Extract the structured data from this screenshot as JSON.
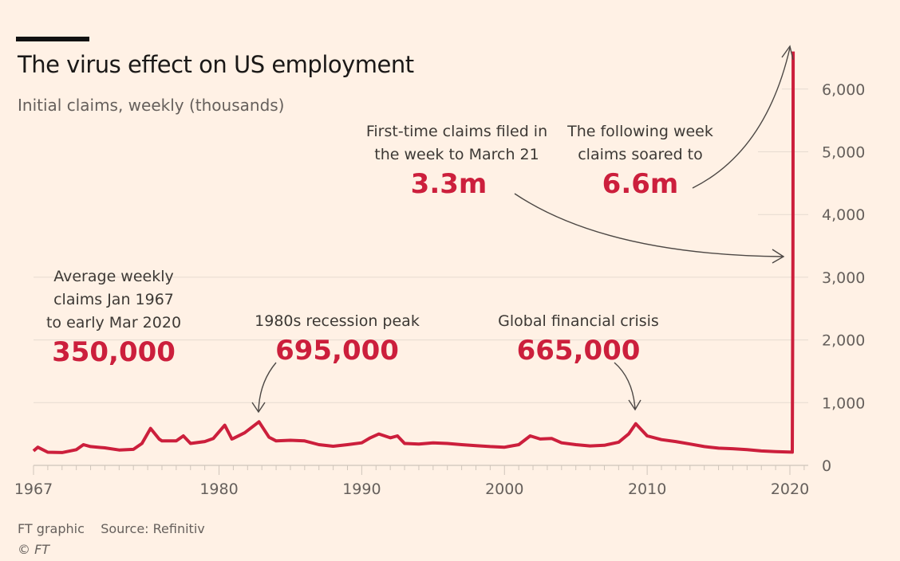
{
  "chart_data": {
    "type": "line",
    "title": "The virus effect on US employment",
    "subtitle": "Initial claims, weekly (thousands)",
    "xlabel": "",
    "ylabel": "",
    "xlim": [
      1967,
      2021
    ],
    "ylim": [
      0,
      6600
    ],
    "y_axis_position": "right",
    "grid": true,
    "x_ticks": [
      "1967",
      "1980",
      "1990",
      "2000",
      "2010",
      "2020"
    ],
    "y_ticks": [
      "0",
      "1,000",
      "2,000",
      "3,000",
      "4,000",
      "5,000",
      "6,000"
    ],
    "line_color": "#cc1f3c",
    "series": [
      {
        "x": [
          1967,
          1967.3,
          1968,
          1969,
          1970,
          1970.5,
          1971,
          1972,
          1973,
          1974,
          1974.6,
          1975.2,
          1975.8,
          1976,
          1977,
          1977.5,
          1978,
          1979,
          1979.6,
          1980.4,
          1980.9,
          1981,
          1981.8,
          1982.8,
          1983.5,
          1984,
          1985,
          1986,
          1987,
          1988,
          1989,
          1990,
          1990.6,
          1991.2,
          1992,
          1992.5,
          1993,
          1994,
          1995,
          1996,
          1997,
          1998,
          1999,
          2000,
          2001,
          2001.8,
          2002.5,
          2003.3,
          2004,
          2005,
          2006,
          2007,
          2008,
          2008.7,
          2009.2,
          2010,
          2011,
          2012,
          2013,
          2014,
          2015,
          2016,
          2017,
          2018,
          2019,
          2020.17,
          2020.21,
          2020.23
        ],
        "y": [
          230,
          290,
          210,
          205,
          250,
          330,
          300,
          280,
          245,
          255,
          350,
          590,
          420,
          390,
          390,
          470,
          350,
          380,
          430,
          640,
          420,
          430,
          520,
          695,
          450,
          390,
          400,
          390,
          330,
          305,
          330,
          360,
          440,
          500,
          440,
          470,
          350,
          340,
          360,
          350,
          330,
          315,
          300,
          290,
          330,
          470,
          420,
          430,
          360,
          330,
          310,
          320,
          370,
          500,
          665,
          470,
          410,
          380,
          340,
          300,
          275,
          265,
          250,
          230,
          220,
          211,
          3300,
          6600
        ]
      }
    ],
    "annotations": [
      {
        "lines": [
          "Average weekly",
          "claims Jan 1967",
          "to early Mar 2020"
        ],
        "value": "350,000"
      },
      {
        "lines": [
          "1980s recession peak"
        ],
        "value": "695,000"
      },
      {
        "lines": [
          "Global financial crisis"
        ],
        "value": "665,000"
      },
      {
        "lines": [
          "First-time claims filed in",
          "the week to March 21"
        ],
        "value": "3.3m"
      },
      {
        "lines": [
          "The following week",
          "claims soared to"
        ],
        "value": "6.6m"
      }
    ]
  },
  "footer": {
    "credit": "FT graphic",
    "source": "Source: Refinitiv",
    "copyright": "© FT"
  },
  "colors": {
    "background": "#fff1e5",
    "accent": "#cc1f3c"
  }
}
